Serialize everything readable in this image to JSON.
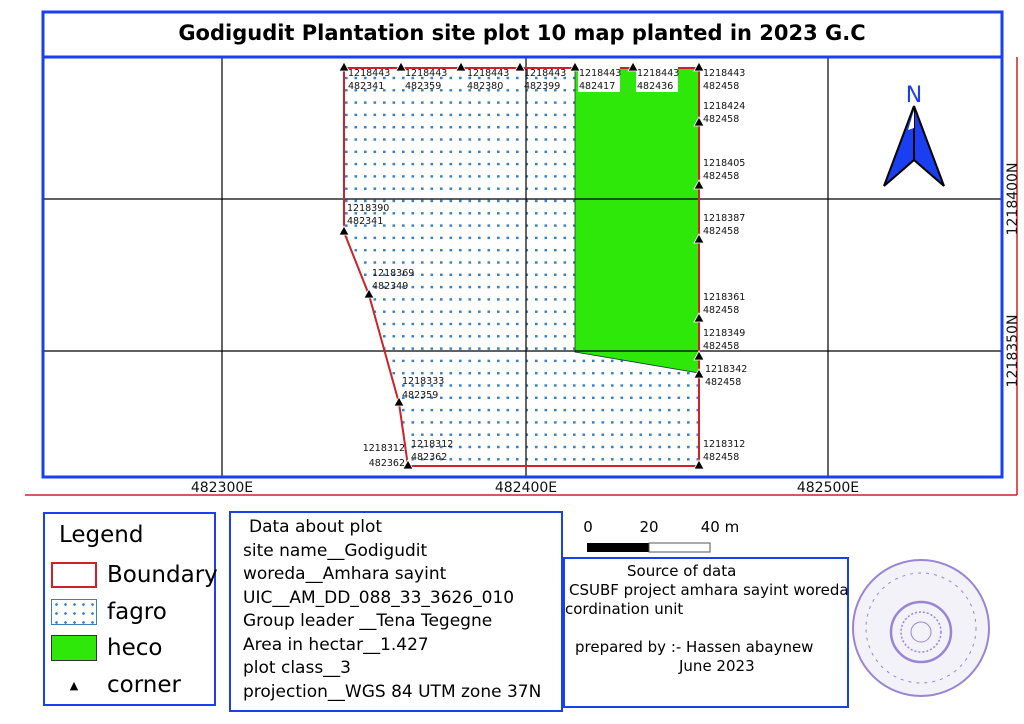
{
  "title": "Godigudit Plantation site plot 10 map planted in 2023 G.C",
  "north_arrow": {
    "label": "N"
  },
  "axes": {
    "x_labels": [
      "482300E",
      "482400E",
      "482500E"
    ],
    "y_labels": [
      "1218400N",
      "1218350N"
    ]
  },
  "corners": [
    {
      "n": "1218443",
      "e": "482341"
    },
    {
      "n": "1218443",
      "e": "482359"
    },
    {
      "n": "1218443",
      "e": "482380"
    },
    {
      "n": "1218443",
      "e": "482399"
    },
    {
      "n": "1218443",
      "e": "482417"
    },
    {
      "n": "1218443",
      "e": "482436"
    },
    {
      "n": "1218443",
      "e": "482458"
    },
    {
      "n": "1218424",
      "e": "482458"
    },
    {
      "n": "1218405",
      "e": "482458"
    },
    {
      "n": "1218387",
      "e": "482458"
    },
    {
      "n": "1218361",
      "e": "482458"
    },
    {
      "n": "1218349",
      "e": "482458"
    },
    {
      "n": "1218342",
      "e": "482458"
    },
    {
      "n": "1218312",
      "e": "482458"
    },
    {
      "n": "1218312",
      "e": "482362"
    },
    {
      "n": "1218312",
      "e": "482362"
    },
    {
      "n": "1218333",
      "e": "482359"
    },
    {
      "n": "1218369",
      "e": "482349"
    },
    {
      "n": "1218390",
      "e": "482341"
    }
  ],
  "legend": {
    "title": "Legend",
    "items": [
      {
        "label": "Boundary",
        "color": "#d0202a"
      },
      {
        "label": "fagro",
        "color": "#3a7fc0"
      },
      {
        "label": "heco",
        "color": "#2ee80a"
      },
      {
        "label": "corner",
        "color": "#000000"
      }
    ]
  },
  "plot_info": {
    "heading": "Data about plot",
    "lines": [
      "site name__Godigudit",
      "woreda__Amhara sayint",
      "UIC__AM_DD_088_33_3626_010",
      "Group leader __Tena Tegegne",
      "Area in hectar__1.427",
      "plot class__3",
      "projection__WGS 84 UTM zone 37N"
    ]
  },
  "scale_bar": {
    "ticks": [
      "0",
      "20",
      "40 m"
    ]
  },
  "source": {
    "heading": "Source of data",
    "line1": "CSUBF project amhara sayint woreda",
    "line2": "cordination unit",
    "prepared": "prepared by :- Hassen abaynew",
    "date": "June 2023"
  },
  "colors": {
    "frame": "#1a3ff0",
    "boundary": "#d0202a",
    "heco": "#2ee80a",
    "fagro_dot": "#3a7fc0",
    "stamp": "#7b5cc8"
  }
}
